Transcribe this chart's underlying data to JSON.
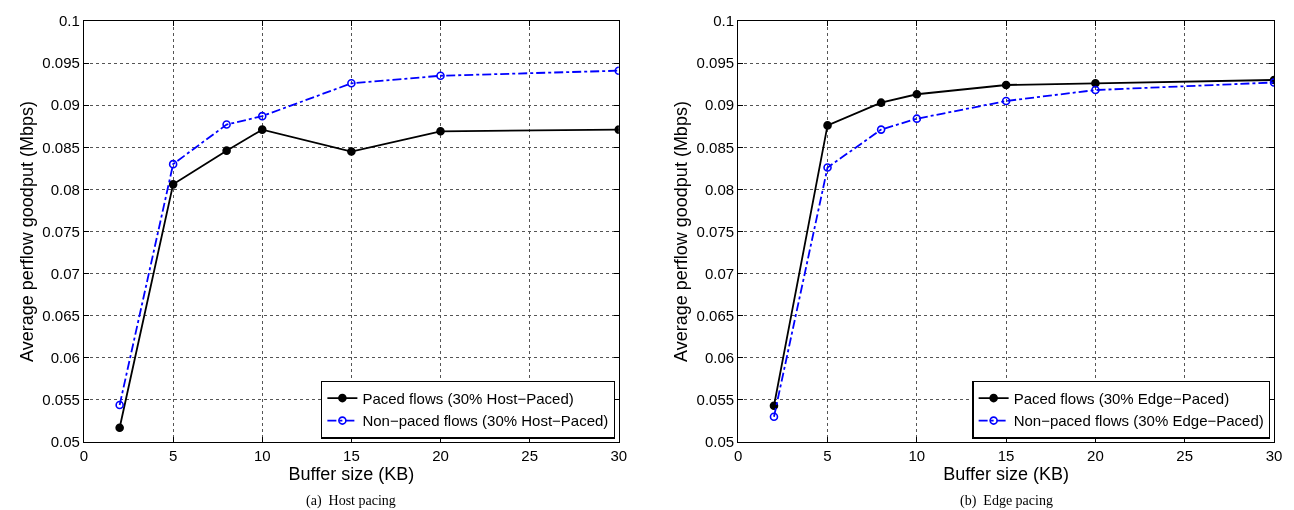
{
  "chart_data": [
    {
      "type": "line",
      "xlabel": "Buffer size (KB)",
      "ylabel": "Average perflow goodput (Mbps)",
      "annotations": [
        "(a)  Host pacing"
      ],
      "x": [
        2,
        5,
        8,
        10,
        15,
        20,
        30
      ],
      "series": [
        {
          "name": "Paced flows (30% Host−Paced)",
          "color": "#000000",
          "values": [
            0.0517,
            0.0806,
            0.0846,
            0.0871,
            0.0845,
            0.0869,
            0.0871
          ],
          "marker": "circle",
          "line_style": "solid"
        },
        {
          "name": "Non−paced flows (30% Host−Paced)",
          "color": "#0000ff",
          "values": [
            0.0544,
            0.083,
            0.0877,
            0.0887,
            0.0926,
            0.0935,
            0.0941
          ],
          "marker": "circle-open",
          "line_style": "dashdot"
        }
      ],
      "xlim": [
        0,
        30
      ],
      "xticks": [
        0,
        5,
        10,
        15,
        20,
        25,
        30
      ],
      "ylim": [
        0.05,
        0.1
      ],
      "yticks": [
        0.05,
        0.055,
        0.06,
        0.065,
        0.07,
        0.075,
        0.08,
        0.085,
        0.09,
        0.095,
        0.1
      ],
      "grid": true,
      "legend": "bottom right"
    },
    {
      "type": "line",
      "xlabel": "Buffer size (KB)",
      "ylabel": "Average perflow goodput (Mbps)",
      "annotations": [
        "(b)  Edge pacing"
      ],
      "x": [
        2,
        5,
        8,
        10,
        15,
        20,
        30
      ],
      "series": [
        {
          "name": "Paced flows (30% Edge−Paced)",
          "color": "#000000",
          "values": [
            0.0543,
            0.0876,
            0.0903,
            0.0913,
            0.0924,
            0.0926,
            0.093
          ],
          "marker": "circle",
          "line_style": "solid"
        },
        {
          "name": "Non−paced flows (30% Edge−Paced)",
          "color": "#0000ff",
          "values": [
            0.053,
            0.0826,
            0.0871,
            0.0884,
            0.0905,
            0.0918,
            0.0927
          ],
          "marker": "circle-open",
          "line_style": "dashdot"
        }
      ],
      "xlim": [
        0,
        30
      ],
      "xticks": [
        0,
        5,
        10,
        15,
        20,
        25,
        30
      ],
      "ylim": [
        0.05,
        0.1
      ],
      "yticks": [
        0.05,
        0.055,
        0.06,
        0.065,
        0.07,
        0.075,
        0.08,
        0.085,
        0.09,
        0.095,
        0.1
      ],
      "grid": true,
      "legend": "bottom right"
    }
  ]
}
